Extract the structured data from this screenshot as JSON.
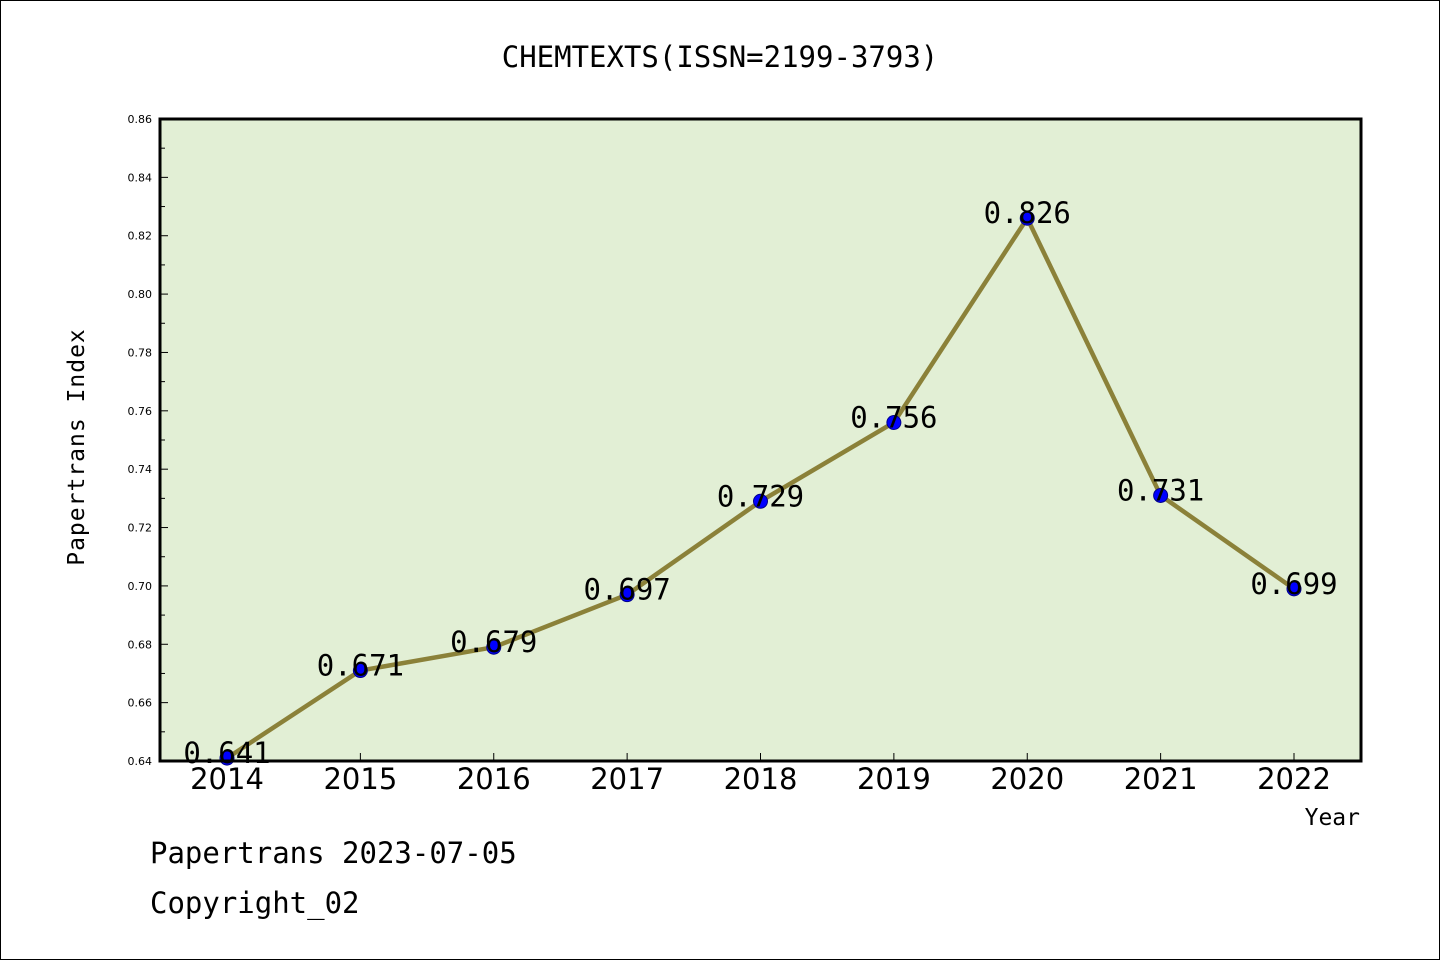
{
  "chart_data": {
    "type": "line",
    "title": "CHEMTEXTS(ISSN=2199-3793)",
    "xlabel": "Year",
    "ylabel": "Papertrans Index",
    "categories": [
      "2014",
      "2015",
      "2016",
      "2017",
      "2018",
      "2019",
      "2020",
      "2021",
      "2022"
    ],
    "values": [
      0.641,
      0.671,
      0.679,
      0.697,
      0.729,
      0.756,
      0.826,
      0.731,
      0.699
    ],
    "value_labels": [
      "0.641",
      "0.671",
      "0.679",
      "0.697",
      "0.729",
      "0.756",
      "0.826",
      "0.731",
      "0.699"
    ],
    "ylim": [
      0.64,
      0.86
    ],
    "yticks": [
      "0.64",
      "0.66",
      "0.68",
      "0.70",
      "0.72",
      "0.74",
      "0.76",
      "0.78",
      "0.80",
      "0.82",
      "0.84",
      "0.86"
    ],
    "grid": false,
    "colors": {
      "plot_background": "#e2efd5",
      "line": "#8b8139",
      "marker": "#0000ff"
    }
  },
  "footer": {
    "line1": "Papertrans 2023-07-05",
    "line2": "Copyright_02"
  }
}
